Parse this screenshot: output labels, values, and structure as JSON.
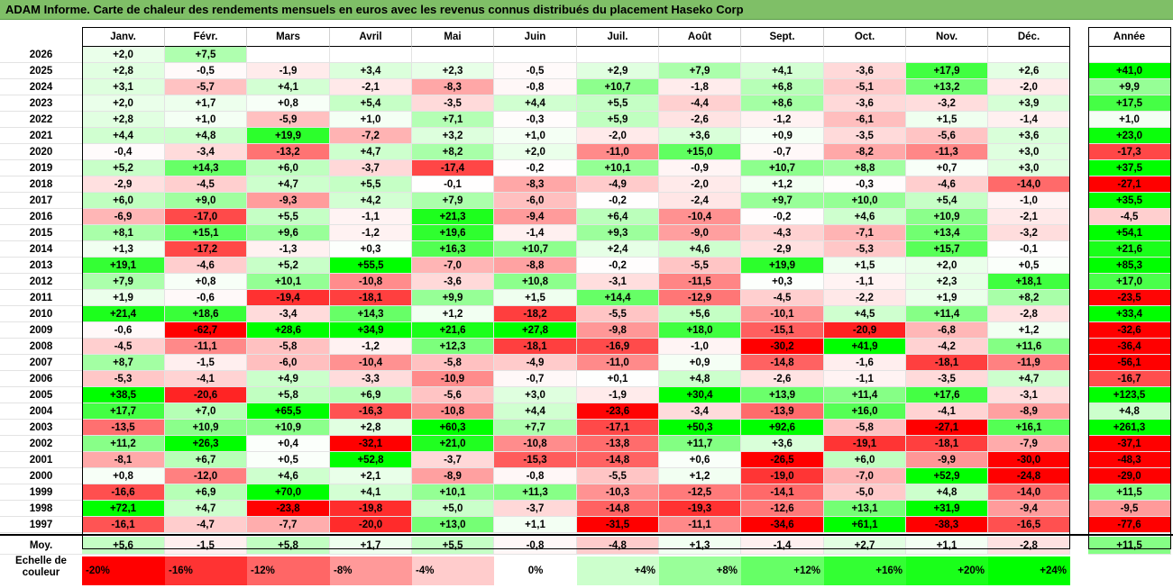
{
  "title": "ADAM Informe. Carte de chaleur des rendements mensuels en euros avec les revenus connus distribués du placement Haseko Corp",
  "chart_data": {
    "type": "heatmap",
    "months": [
      "Janv.",
      "Févr.",
      "Mars",
      "Avril",
      "Mai",
      "Juin",
      "Juil.",
      "Août",
      "Sept.",
      "Oct.",
      "Nov.",
      "Déc."
    ],
    "year_header": "Année",
    "rows": [
      {
        "year": "2026",
        "values": [
          "+2,0",
          "+7,5",
          null,
          null,
          null,
          null,
          null,
          null,
          null,
          null,
          null,
          null
        ],
        "annual": null
      },
      {
        "year": "2025",
        "values": [
          "+2,8",
          "-0,5",
          "-1,9",
          "+3,4",
          "+2,3",
          "-0,5",
          "+2,9",
          "+7,9",
          "+4,1",
          "-3,6",
          "+17,9",
          "+2,6"
        ],
        "annual": "+41,0"
      },
      {
        "year": "2024",
        "values": [
          "+3,1",
          "-5,7",
          "+4,1",
          "-2,1",
          "-8,3",
          "-0,8",
          "+10,7",
          "-1,8",
          "+6,8",
          "-5,1",
          "+13,2",
          "-2,0"
        ],
        "annual": "+9,9"
      },
      {
        "year": "2023",
        "values": [
          "+2,0",
          "+1,7",
          "+0,8",
          "+5,4",
          "-3,5",
          "+4,4",
          "+5,5",
          "-4,4",
          "+8,6",
          "-3,6",
          "-3,2",
          "+3,9"
        ],
        "annual": "+17,5"
      },
      {
        "year": "2022",
        "values": [
          "+2,8",
          "+1,0",
          "-5,9",
          "+1,0",
          "+7,1",
          "-0,3",
          "+5,9",
          "-2,6",
          "-1,2",
          "-6,1",
          "+1,5",
          "-1,4"
        ],
        "annual": "+1,0"
      },
      {
        "year": "2021",
        "values": [
          "+4,4",
          "+4,8",
          "+19,9",
          "-7,2",
          "+3,2",
          "+1,0",
          "-2,0",
          "+3,6",
          "+0,9",
          "-3,5",
          "-5,6",
          "+3,6"
        ],
        "annual": "+23,0"
      },
      {
        "year": "2020",
        "values": [
          "-0,4",
          "-3,4",
          "-13,2",
          "+4,7",
          "+8,2",
          "+2,0",
          "-11,0",
          "+15,0",
          "-0,7",
          "-8,2",
          "-11,3",
          "+3,0"
        ],
        "annual": "-17,3"
      },
      {
        "year": "2019",
        "values": [
          "+5,2",
          "+14,3",
          "+6,0",
          "-3,7",
          "-17,4",
          "-0,2",
          "+10,1",
          "-0,9",
          "+10,7",
          "+8,8",
          "+0,7",
          "+3,0"
        ],
        "annual": "+37,5"
      },
      {
        "year": "2018",
        "values": [
          "-2,9",
          "-4,5",
          "+4,7",
          "+5,5",
          "-0,1",
          "-8,3",
          "-4,9",
          "-2,0",
          "+1,2",
          "-0,3",
          "-4,6",
          "-14,0"
        ],
        "annual": "-27,1"
      },
      {
        "year": "2017",
        "values": [
          "+6,0",
          "+9,0",
          "-9,3",
          "+4,2",
          "+7,9",
          "-6,0",
          "-0,2",
          "-2,4",
          "+9,7",
          "+10,0",
          "+5,4",
          "-1,0"
        ],
        "annual": "+35,5"
      },
      {
        "year": "2016",
        "values": [
          "-6,9",
          "-17,0",
          "+5,5",
          "-1,1",
          "+21,3",
          "-9,4",
          "+6,4",
          "-10,4",
          "-0,2",
          "+4,6",
          "+10,9",
          "-2,1"
        ],
        "annual": "-4,5"
      },
      {
        "year": "2015",
        "values": [
          "+8,1",
          "+15,1",
          "+9,6",
          "-1,2",
          "+19,6",
          "-1,4",
          "+9,3",
          "-9,0",
          "-4,3",
          "-7,1",
          "+13,4",
          "-3,2"
        ],
        "annual": "+54,1"
      },
      {
        "year": "2014",
        "values": [
          "+1,3",
          "-17,2",
          "-1,3",
          "+0,3",
          "+16,3",
          "+10,7",
          "+2,4",
          "+4,6",
          "-2,9",
          "-5,3",
          "+15,7",
          "-0,1"
        ],
        "annual": "+21,6"
      },
      {
        "year": "2013",
        "values": [
          "+19,1",
          "-4,6",
          "+5,2",
          "+55,5",
          "-7,0",
          "-8,8",
          "-0,2",
          "-5,5",
          "+19,9",
          "+1,5",
          "+2,0",
          "+0,5"
        ],
        "annual": "+85,3"
      },
      {
        "year": "2012",
        "values": [
          "+7,9",
          "+0,8",
          "+10,1",
          "-10,8",
          "-3,6",
          "+10,8",
          "-3,1",
          "-11,5",
          "+0,3",
          "-1,1",
          "+2,3",
          "+18,1"
        ],
        "annual": "+17,0"
      },
      {
        "year": "2011",
        "values": [
          "+1,9",
          "-0,6",
          "-19,4",
          "-18,1",
          "+9,9",
          "+1,5",
          "+14,4",
          "-12,9",
          "-4,5",
          "-2,2",
          "+1,9",
          "+8,2"
        ],
        "annual": "-23,5"
      },
      {
        "year": "2010",
        "values": [
          "+21,4",
          "+18,6",
          "-3,4",
          "+14,3",
          "+1,2",
          "-18,2",
          "-5,5",
          "+5,6",
          "-10,1",
          "+4,5",
          "+11,4",
          "-2,8"
        ],
        "annual": "+33,4"
      },
      {
        "year": "2009",
        "values": [
          "-0,6",
          "-62,7",
          "+28,6",
          "+34,9",
          "+21,6",
          "+27,8",
          "-9,8",
          "+18,0",
          "-15,1",
          "-20,9",
          "-6,8",
          "+1,2"
        ],
        "annual": "-32,6"
      },
      {
        "year": "2008",
        "values": [
          "-4,5",
          "-11,1",
          "-5,8",
          "-1,2",
          "+12,3",
          "-18,1",
          "-16,9",
          "-1,0",
          "-30,2",
          "+41,9",
          "-4,2",
          "+11,6"
        ],
        "annual": "-36,4"
      },
      {
        "year": "2007",
        "values": [
          "+8,7",
          "-1,5",
          "-6,0",
          "-10,4",
          "-5,8",
          "-4,9",
          "-11,0",
          "+0,9",
          "-14,8",
          "-1,6",
          "-18,1",
          "-11,9"
        ],
        "annual": "-56,1"
      },
      {
        "year": "2006",
        "values": [
          "-5,3",
          "-4,1",
          "+4,9",
          "-3,3",
          "-10,9",
          "-0,7",
          "+0,1",
          "+4,8",
          "-2,6",
          "-1,1",
          "-3,5",
          "+4,7"
        ],
        "annual": "-16,7"
      },
      {
        "year": "2005",
        "values": [
          "+38,5",
          "-20,6",
          "+5,8",
          "+6,9",
          "-5,6",
          "+3,0",
          "-1,9",
          "+30,4",
          "+13,9",
          "+11,4",
          "+17,6",
          "-3,1"
        ],
        "annual": "+123,5"
      },
      {
        "year": "2004",
        "values": [
          "+17,7",
          "+7,0",
          "+65,5",
          "-16,3",
          "-10,8",
          "+4,4",
          "-23,6",
          "-3,4",
          "-13,9",
          "+16,0",
          "-4,1",
          "-8,9"
        ],
        "annual": "+4,8"
      },
      {
        "year": "2003",
        "values": [
          "-13,5",
          "+10,9",
          "+10,9",
          "+2,8",
          "+60,3",
          "+7,7",
          "-17,1",
          "+50,3",
          "+92,6",
          "-5,8",
          "-27,1",
          "+16,1"
        ],
        "annual": "+261,3"
      },
      {
        "year": "2002",
        "values": [
          "+11,2",
          "+26,3",
          "+0,4",
          "-32,1",
          "+21,0",
          "-10,8",
          "-13,8",
          "+11,7",
          "+3,6",
          "-19,1",
          "-18,1",
          "-7,9"
        ],
        "annual": "-37,1"
      },
      {
        "year": "2001",
        "values": [
          "-8,1",
          "+6,7",
          "+0,5",
          "+52,8",
          "-3,7",
          "-15,3",
          "-14,8",
          "+0,6",
          "-26,5",
          "+6,0",
          "-9,9",
          "-30,0"
        ],
        "annual": "-48,3"
      },
      {
        "year": "2000",
        "values": [
          "+0,8",
          "-12,0",
          "+4,6",
          "+2,1",
          "-8,9",
          "-0,8",
          "-5,5",
          "+1,2",
          "-19,0",
          "-7,0",
          "+52,9",
          "-24,8"
        ],
        "annual": "-29,0"
      },
      {
        "year": "1999",
        "values": [
          "-16,6",
          "+6,9",
          "+70,0",
          "+4,1",
          "+10,1",
          "+11,3",
          "-10,3",
          "-12,5",
          "-14,1",
          "-5,0",
          "+4,8",
          "-14,0"
        ],
        "annual": "+11,5"
      },
      {
        "year": "1998",
        "values": [
          "+72,1",
          "+4,7",
          "-23,8",
          "-19,8",
          "+5,0",
          "-3,7",
          "-14,8",
          "-19,3",
          "-12,6",
          "+13,1",
          "+31,9",
          "-9,4"
        ],
        "annual": "-9,5"
      },
      {
        "year": "1997",
        "values": [
          "-16,1",
          "-4,7",
          "-7,7",
          "-20,0",
          "+13,0",
          "+1,1",
          "-31,5",
          "-11,1",
          "-34,6",
          "+61,1",
          "-38,3",
          "-16,5"
        ],
        "annual": "-77,6"
      }
    ],
    "average": {
      "label": "Moy.",
      "values": [
        "+5,6",
        "-1,5",
        "+5,8",
        "+1,7",
        "+5,5",
        "-0,8",
        "-4,8",
        "+1,3",
        "-1,4",
        "+2,7",
        "+1,1",
        "-2,8"
      ],
      "annual": "+11,5"
    },
    "scale": {
      "label_line1": "Echelle de",
      "label_line2": "couleur",
      "steps": [
        {
          "label": "-20%",
          "color": "#ff0000",
          "align": "left"
        },
        {
          "label": "-16%",
          "color": "#ff3333",
          "align": "left"
        },
        {
          "label": "-12%",
          "color": "#ff6666",
          "align": "left"
        },
        {
          "label": "-8%",
          "color": "#ff9999",
          "align": "left"
        },
        {
          "label": "-4%",
          "color": "#ffcccc",
          "align": "left"
        },
        {
          "label": "0%",
          "color": "#ffffff",
          "align": "center"
        },
        {
          "label": "+4%",
          "color": "#ccffcc",
          "align": "right"
        },
        {
          "label": "+8%",
          "color": "#99ff99",
          "align": "right"
        },
        {
          "label": "+12%",
          "color": "#66ff66",
          "align": "right"
        },
        {
          "label": "+16%",
          "color": "#33ff33",
          "align": "right"
        },
        {
          "label": "+20%",
          "color": "#1aff1a",
          "align": "right"
        },
        {
          "label": "+24%",
          "color": "#00ff00",
          "align": "right"
        }
      ]
    }
  }
}
